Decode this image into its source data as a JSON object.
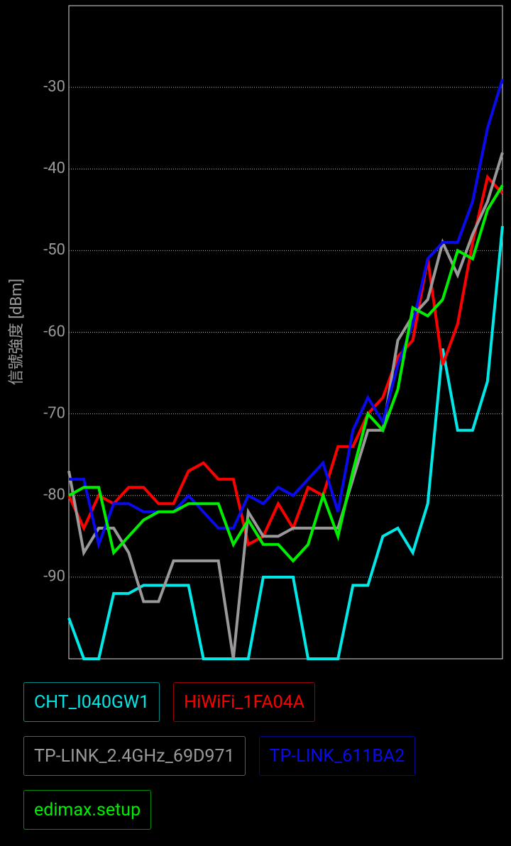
{
  "chart_data": {
    "type": "line",
    "y_axis_label": "信號強度 [dBm]",
    "categories": [
      null,
      null,
      null,
      null,
      null,
      null,
      null,
      null,
      null,
      null,
      null,
      null,
      null,
      null,
      null,
      null,
      null,
      null,
      null,
      null,
      null,
      null,
      null,
      null,
      null,
      null,
      null,
      null,
      null,
      null
    ],
    "ylim": [
      -100,
      -20
    ],
    "yticks": [
      -90,
      -80,
      -70,
      -60,
      -50,
      -40,
      -30
    ],
    "grid": true,
    "series": [
      {
        "name": "CHT_I040GW1",
        "color": "#00e8e8",
        "values": [
          -95,
          -100,
          -100,
          -92,
          -92,
          -91,
          -91,
          -91,
          -91,
          -100,
          -100,
          -100,
          -100,
          -90,
          -90,
          -90,
          -100,
          -100,
          -100,
          -91,
          -91,
          -85,
          -84,
          -87,
          -81,
          -62,
          -72,
          -72,
          -66,
          -47
        ]
      },
      {
        "name": "HiWiFi_1FA04A",
        "color": "#ff0000",
        "values": [
          -80,
          -84,
          -80,
          -81,
          -79,
          -79,
          -81,
          -81,
          -77,
          -76,
          -78,
          -78,
          -86,
          -85,
          -81,
          -84,
          -79,
          -80,
          -74,
          -74,
          -70,
          -68,
          -63,
          -61,
          -51,
          -64,
          -59,
          -49,
          -41,
          -43
        ]
      },
      {
        "name": "TP-LINK_2.4GHz_69D971",
        "color": "#999999",
        "values": [
          -77,
          -87,
          -84,
          -84,
          -87,
          -93,
          -93,
          -88,
          -88,
          -88,
          -88,
          -100,
          -82,
          -85,
          -85,
          -84,
          -84,
          -84,
          -84,
          -78,
          -72,
          -72,
          -61,
          -58,
          -56,
          -49,
          -53,
          -48,
          -44,
          -38
        ]
      },
      {
        "name": "TP-LINK_611BA2",
        "color": "#0a0aee",
        "values": [
          -78,
          -78,
          -86,
          -81,
          -81,
          -82,
          -82,
          -82,
          -80,
          -82,
          -84,
          -84,
          -80,
          -81,
          -79,
          -80,
          -78,
          -76,
          -82,
          -72,
          -68,
          -71,
          -64,
          -59,
          -51,
          -49,
          -49,
          -44,
          -35,
          -29
        ]
      },
      {
        "name": "edimax.setup",
        "color": "#00ee00",
        "values": [
          -80,
          -79,
          -79,
          -87,
          -85,
          -83,
          -82,
          -82,
          -81,
          -81,
          -81,
          -86,
          -83,
          -86,
          -86,
          -88,
          -86,
          -80,
          -85,
          -77,
          -70,
          -72,
          -67,
          -57,
          -58,
          -56,
          -50,
          -51,
          -45,
          -42
        ]
      }
    ]
  }
}
